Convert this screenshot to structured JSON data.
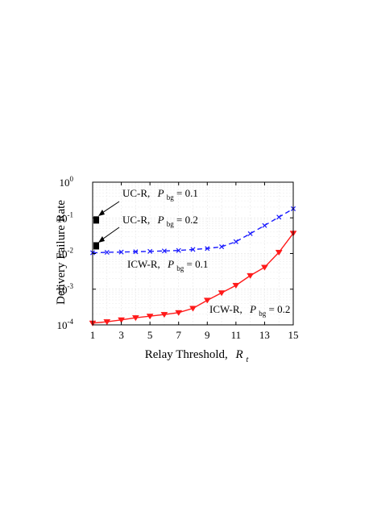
{
  "chart_data": {
    "type": "line",
    "xlabel": "Relay Threshold,",
    "xlabel_symbol": "R",
    "xlabel_sub": "t",
    "ylabel": "Delivery Failure Rate",
    "xlim": [
      1,
      15
    ],
    "ylim": [
      0.0001,
      1
    ],
    "yscale": "log",
    "xticks": [
      1,
      3,
      5,
      7,
      9,
      11,
      13,
      15
    ],
    "xtick_labels": [
      "1",
      "3",
      "5",
      "7",
      "9",
      "11",
      "13",
      "15"
    ],
    "yticks": [
      0.0001,
      0.001,
      0.01,
      0.1,
      1
    ],
    "ytick_labels": [
      {
        "base": "10",
        "exp": "-4"
      },
      {
        "base": "10",
        "exp": "-3"
      },
      {
        "base": "10",
        "exp": "-2"
      },
      {
        "base": "10",
        "exp": "-1"
      },
      {
        "base": "10",
        "exp": "0"
      }
    ],
    "grid": true,
    "series": [
      {
        "name": "UC-R, Pbg = 0.1",
        "color": "#000000",
        "marker": "square",
        "x": [
          1
        ],
        "y": [
          0.085
        ]
      },
      {
        "name": "UC-R, Pbg = 0.2",
        "color": "#000000",
        "marker": "square",
        "x": [
          1
        ],
        "y": [
          0.016
        ]
      },
      {
        "name": "ICW-R, Pbg = 0.1",
        "color": "#1a1aff",
        "line_style": "dashed",
        "marker": "x",
        "x": [
          1,
          2,
          3,
          4,
          5,
          6,
          7,
          8,
          9,
          10,
          11,
          12,
          13,
          14,
          15
        ],
        "y": [
          0.0105,
          0.0108,
          0.011,
          0.0112,
          0.0115,
          0.0118,
          0.0122,
          0.013,
          0.0138,
          0.0155,
          0.0215,
          0.036,
          0.061,
          0.105,
          0.18
        ]
      },
      {
        "name": "ICW-R, Pbg = 0.2",
        "color": "#ff1a1a",
        "line_style": "solid",
        "marker": "triangle-down",
        "x": [
          1,
          2,
          3,
          4,
          5,
          6,
          7,
          8,
          9,
          10,
          11,
          12,
          13,
          14,
          15
        ],
        "y": [
          0.000112,
          0.000122,
          0.000138,
          0.000158,
          0.000175,
          0.000195,
          0.00022,
          0.00029,
          0.00049,
          0.00079,
          0.00128,
          0.0024,
          0.0041,
          0.0108,
          0.037
        ]
      }
    ],
    "annotations": [
      {
        "id": "uc01",
        "prefix": "UC-R,",
        "symbol": "P",
        "sub": "bg",
        "value": " = 0.1"
      },
      {
        "id": "uc02",
        "prefix": "UC-R,",
        "symbol": "P",
        "sub": "bg",
        "value": " = 0.2"
      },
      {
        "id": "icw01",
        "prefix": "ICW-R,",
        "symbol": "P",
        "sub": "bg",
        "value": " = 0.1"
      },
      {
        "id": "icw02",
        "prefix": "ICW-R,",
        "symbol": "P",
        "sub": "bg",
        "value": " = 0.2"
      }
    ]
  }
}
